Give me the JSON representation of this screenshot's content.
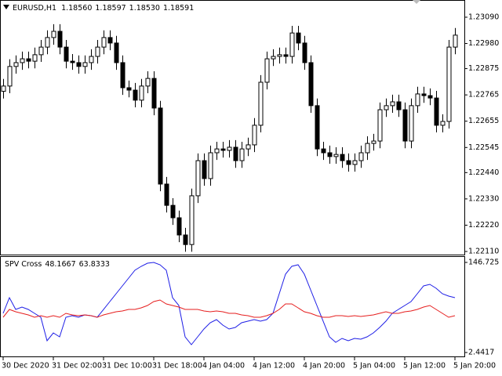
{
  "chart_data": [
    {
      "type": "candlestick",
      "title": "EURUSD,H1",
      "header_values": [
        "1.18560",
        "1.18597",
        "1.18530",
        "1.18591"
      ],
      "up_color": "#ffffff",
      "down_color": "#000000",
      "wick_color": "#000000",
      "xlim": [
        -0.5,
        73.5
      ],
      "ylim": [
        1.22097,
        1.23162
      ],
      "yticks": [
        {
          "value": 1.2309,
          "label": "1.23090"
        },
        {
          "value": 1.2298,
          "label": "1.22980"
        },
        1.22875,
        1.22765,
        1.22655,
        1.22545,
        {
          "value": 1.2244,
          "label": "1.22440"
        },
        {
          "value": 1.2233,
          "label": "1.22330"
        },
        {
          "value": 1.2222,
          "label": "1.22220"
        },
        {
          "value": 1.2211,
          "label": "1.22110"
        }
      ],
      "open": [
        1.2278,
        1.22802,
        1.22884,
        1.229,
        1.22916,
        1.22906,
        1.22933,
        1.22965,
        1.23005,
        1.23031,
        1.22965,
        1.22906,
        1.229,
        1.22884,
        1.229,
        1.22926,
        1.22965,
        1.23005,
        1.22982,
        1.229,
        1.22795,
        1.22785,
        1.22743,
        1.22802,
        1.22834,
        1.2271,
        1.22392,
        1.22303,
        1.22251,
        1.22179,
        1.22139,
        1.22343,
        1.2249,
        1.22415,
        1.22523,
        1.22539,
        1.22533,
        1.22546,
        1.2249,
        1.22539,
        1.22556,
        1.22638,
        1.22818,
        1.22916,
        1.22926,
        1.22933,
        1.22926,
        1.23024,
        1.22982,
        1.229,
        1.2272,
        1.22539,
        1.22523,
        1.22507,
        1.22516,
        1.2249,
        1.22474,
        1.2249,
        1.22523,
        1.22562,
        1.22572,
        1.22703,
        1.2272,
        1.22736,
        1.22703,
        1.22572,
        1.2272,
        1.22769,
        1.22762,
        1.22752,
        1.22638,
        1.22654,
        1.22965
      ],
      "high": [
        1.22832,
        1.22914,
        1.2293,
        1.22946,
        1.22946,
        1.22963,
        1.22995,
        1.23035,
        1.23061,
        1.23061,
        1.22995,
        1.22936,
        1.2293,
        1.2293,
        1.22956,
        1.22995,
        1.23035,
        1.23035,
        1.23012,
        1.2293,
        1.22825,
        1.22815,
        1.22832,
        1.22864,
        1.22864,
        1.2274,
        1.22422,
        1.22333,
        1.22281,
        1.22209,
        1.22373,
        1.2252,
        1.2252,
        1.22553,
        1.22569,
        1.22569,
        1.22576,
        1.22576,
        1.22569,
        1.22586,
        1.22668,
        1.22848,
        1.22946,
        1.22956,
        1.22963,
        1.22963,
        1.23054,
        1.23054,
        1.23012,
        1.2293,
        1.2275,
        1.22569,
        1.22553,
        1.22546,
        1.22546,
        1.2252,
        1.2252,
        1.22553,
        1.22592,
        1.22602,
        1.22733,
        1.2275,
        1.22766,
        1.22766,
        1.22733,
        1.2275,
        1.22799,
        1.22799,
        1.22792,
        1.22782,
        1.22684,
        1.22995,
        1.23045
      ],
      "low": [
        1.2275,
        1.22772,
        1.22854,
        1.2287,
        1.22876,
        1.22876,
        1.22903,
        1.22935,
        1.22975,
        1.22935,
        1.22876,
        1.2287,
        1.22854,
        1.22854,
        1.2287,
        1.22896,
        1.22935,
        1.22952,
        1.2287,
        1.22765,
        1.22755,
        1.22713,
        1.22713,
        1.22772,
        1.2268,
        1.22362,
        1.22273,
        1.22221,
        1.22149,
        1.22109,
        1.22109,
        1.22313,
        1.22385,
        1.22385,
        1.22493,
        1.22503,
        1.22503,
        1.2246,
        1.2246,
        1.22509,
        1.22526,
        1.22608,
        1.22788,
        1.22886,
        1.22896,
        1.22896,
        1.22896,
        1.22952,
        1.2287,
        1.2269,
        1.22509,
        1.22493,
        1.22477,
        1.22477,
        1.2246,
        1.22444,
        1.22444,
        1.2246,
        1.22493,
        1.22532,
        1.22542,
        1.22673,
        1.2269,
        1.22673,
        1.22542,
        1.22542,
        1.2269,
        1.22732,
        1.22722,
        1.22608,
        1.22608,
        1.22624,
        1.22935
      ],
      "close": [
        1.22802,
        1.22884,
        1.229,
        1.22916,
        1.22906,
        1.22933,
        1.22965,
        1.23005,
        1.23031,
        1.22965,
        1.22906,
        1.229,
        1.22884,
        1.229,
        1.22926,
        1.22965,
        1.23005,
        1.22982,
        1.229,
        1.22795,
        1.22785,
        1.22743,
        1.22802,
        1.22834,
        1.2271,
        1.22392,
        1.22303,
        1.22251,
        1.22179,
        1.22139,
        1.22343,
        1.2249,
        1.22415,
        1.22523,
        1.22539,
        1.22533,
        1.22546,
        1.2249,
        1.22539,
        1.22556,
        1.22638,
        1.22818,
        1.22916,
        1.22926,
        1.22933,
        1.22926,
        1.23024,
        1.22982,
        1.229,
        1.2272,
        1.22539,
        1.22523,
        1.22507,
        1.22516,
        1.2249,
        1.22474,
        1.2249,
        1.22523,
        1.22562,
        1.22572,
        1.22703,
        1.2272,
        1.22736,
        1.22703,
        1.22572,
        1.2272,
        1.22769,
        1.22762,
        1.22752,
        1.22638,
        1.22654,
        1.22965,
        1.23015
      ]
    },
    {
      "type": "line",
      "title": "SPV Cross",
      "header_values": [
        "48.1667",
        "63.8333"
      ],
      "xlim": [
        -0.5,
        73.5
      ],
      "ylim": [
        -3.83,
        155.51
      ],
      "yticks": [
        146.725,
        2.4417
      ],
      "xticks": [
        {
          "value": 0,
          "label": "30 Dec 2020"
        },
        {
          "value": 8,
          "label": "31 Dec 02:00"
        },
        {
          "value": 16,
          "label": "31 Dec 10:00"
        },
        {
          "value": 24,
          "label": "31 Dec 18:00"
        },
        {
          "value": 32,
          "label": "4 Jan 04:00"
        },
        {
          "value": 40,
          "label": "4 Jan 12:00"
        },
        {
          "value": 48,
          "label": "4 Jan 20:00"
        },
        {
          "value": 56,
          "label": "5 Jan 04:00"
        },
        {
          "value": 64,
          "label": "5 Jan 12:00"
        },
        {
          "value": 72,
          "label": "5 Jan 20:00"
        }
      ],
      "series": [
        {
          "color": "#1e1ee6",
          "values": [
            65.17,
            90.26,
            71.44,
            75.21,
            71.44,
            65.17,
            58.9,
            21.26,
            33.8,
            27.53,
            58.9,
            61.41,
            58.9,
            62.66,
            61.41,
            58.9,
            71.44,
            83.99,
            96.54,
            109.09,
            121.63,
            134.18,
            140.45,
            145.47,
            146.72,
            142.96,
            134.18,
            90.26,
            77.72,
            27.53,
            14.98,
            27.53,
            40.08,
            50.11,
            55.13,
            46.35,
            40.08,
            42.58,
            50.11,
            52.62,
            55.13,
            52.62,
            55.13,
            65.17,
            96.54,
            127.9,
            140.45,
            142.96,
            127.9,
            102.81,
            77.72,
            52.62,
            27.53,
            18.75,
            25.02,
            21.26,
            25.02,
            23.76,
            27.53,
            33.8,
            42.58,
            52.62,
            65.17,
            71.44,
            77.72,
            83.99,
            96.54,
            109.09,
            111.59,
            105.32,
            96.54,
            92.77,
            90.26
          ]
        },
        {
          "color": "#e61e1e",
          "values": [
            58.9,
            71.44,
            67.67,
            65.17,
            62.66,
            58.9,
            61.41,
            58.9,
            61.41,
            58.9,
            65.17,
            62.66,
            61.41,
            62.66,
            61.41,
            58.9,
            62.66,
            65.17,
            67.67,
            68.93,
            71.44,
            71.44,
            73.95,
            77.72,
            83.99,
            86.5,
            80.23,
            77.72,
            75.21,
            71.44,
            71.44,
            71.44,
            68.93,
            67.67,
            68.93,
            67.67,
            65.17,
            65.17,
            62.66,
            61.41,
            58.9,
            58.9,
            61.41,
            65.17,
            71.44,
            80.23,
            80.23,
            73.95,
            67.67,
            65.17,
            61.41,
            58.9,
            58.9,
            61.41,
            61.41,
            60.15,
            61.41,
            60.15,
            61.41,
            62.66,
            65.17,
            67.67,
            65.17,
            65.17,
            67.67,
            68.93,
            71.44,
            75.21,
            77.72,
            71.44,
            65.17,
            58.9,
            61.41
          ]
        }
      ]
    }
  ]
}
